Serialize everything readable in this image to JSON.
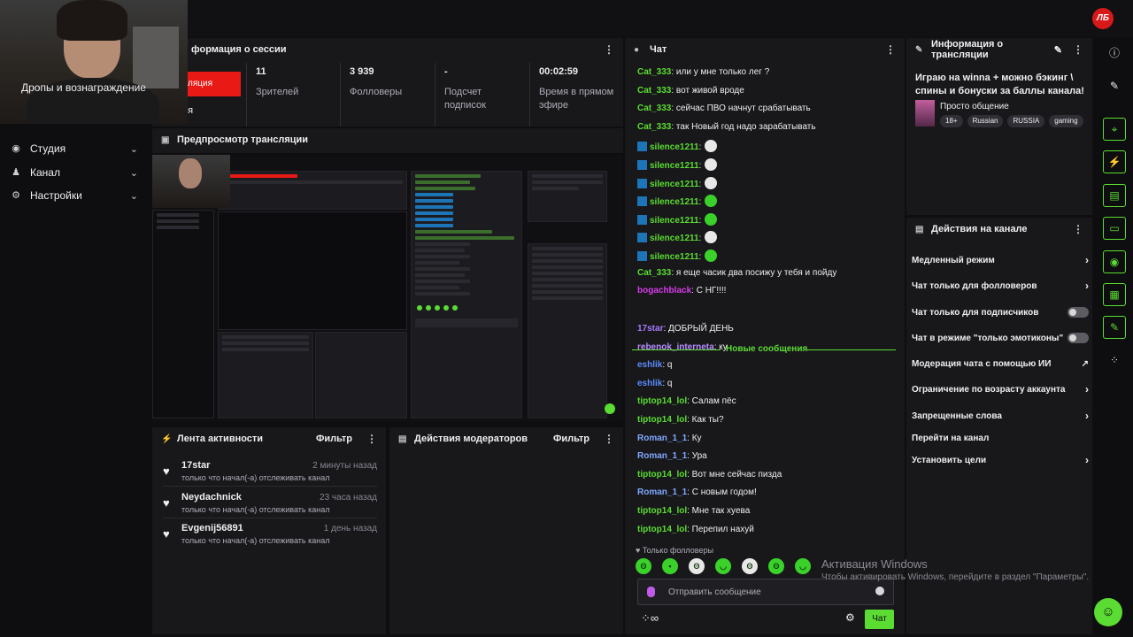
{
  "logo": "ЛБ",
  "sidebar": {
    "drops_label": "Дропы и вознаграждение",
    "items": [
      {
        "label": "Студия",
        "icon": "studio-icon"
      },
      {
        "label": "Канал",
        "icon": "channel-icon"
      },
      {
        "label": "Настройки",
        "icon": "gear-icon"
      }
    ]
  },
  "session": {
    "title": "формация о сессии",
    "live_label": "ляция",
    "live_sub": "ия",
    "stats": [
      {
        "value": "11",
        "label": "Зрителей"
      },
      {
        "value": "3 939",
        "label": "Фолловеры"
      },
      {
        "value": "-",
        "label": "Подсчет подписок"
      },
      {
        "value": "00:02:59",
        "label": "Время в прямом эфире"
      }
    ]
  },
  "preview": {
    "title": "Предпросмотр трансляции"
  },
  "activity": {
    "title": "Лента активности",
    "filter": "Фильтр",
    "items": [
      {
        "name": "17star",
        "time": "2 минуты назад",
        "desc": "только что начал(-а) отслеживать канал"
      },
      {
        "name": "Neydachnick",
        "time": "23 часа назад",
        "desc": "только что начал(-а) отслеживать канал"
      },
      {
        "name": "Evgenij56891",
        "time": "1 день назад",
        "desc": "только что начал(-а) отслеживать канал"
      }
    ]
  },
  "moderators": {
    "title": "Действия модераторов",
    "filter": "Фильтр"
  },
  "chat": {
    "title": "Чат",
    "new_messages": "Новые сообщения",
    "messages_before": [
      {
        "user": "Cat_333",
        "color": "#5bdc32",
        "text": ": или у мне только лег ?",
        "badge": false,
        "emote": ""
      },
      {
        "user": "Cat_333",
        "color": "#5bdc32",
        "text": ": вот живой вроде",
        "badge": false,
        "emote": ""
      },
      {
        "user": "Cat_333",
        "color": "#5bdc32",
        "text": ": сейчас ПВО начнут срабатывать",
        "badge": false,
        "emote": ""
      },
      {
        "user": "Cat_333",
        "color": "#5bdc32",
        "text": ": так Новый год надо зарабатывать",
        "badge": false,
        "emote": ""
      },
      {
        "user": "silence1211",
        "color": "#5bdc32",
        "text": ":",
        "badge": true,
        "emote": "#e8e8e8"
      },
      {
        "user": "silence1211",
        "color": "#5bdc32",
        "text": ":",
        "badge": true,
        "emote": "#e8e8e8"
      },
      {
        "user": "silence1211",
        "color": "#5bdc32",
        "text": ":",
        "badge": true,
        "emote": "#e8e8e8"
      },
      {
        "user": "silence1211",
        "color": "#5bdc32",
        "text": ":",
        "badge": true,
        "emote": "#3ad12a"
      },
      {
        "user": "silence1211",
        "color": "#5bdc32",
        "text": ":",
        "badge": true,
        "emote": "#3ad12a"
      },
      {
        "user": "silence1211",
        "color": "#5bdc32",
        "text": ":",
        "badge": true,
        "emote": "#e8e8e8"
      },
      {
        "user": "silence1211",
        "color": "#5bdc32",
        "text": ":",
        "badge": true,
        "emote": "#3ad12a"
      },
      {
        "user": "Cat_333",
        "color": "#5bdc32",
        "text": ": я еще часик два посижу у тебя и пойду",
        "badge": false,
        "emote": ""
      },
      {
        "user": "bogachblack",
        "color": "#d63be8",
        "text": ": С НГ!!!!",
        "badge": false,
        "emote": ""
      }
    ],
    "messages_after": [
      {
        "user": "17star",
        "color": "#a77bff",
        "text": ": ДОБРЫЙ ДЕНЬ"
      },
      {
        "user": "rebenok_interneta",
        "color": "#b88cff",
        "text": ": ку"
      },
      {
        "user": "eshlik",
        "color": "#5b8cff",
        "text": ": q"
      },
      {
        "user": "eshlik",
        "color": "#5b8cff",
        "text": ": q"
      },
      {
        "user": "tiptop14_lol",
        "color": "#5bdc32",
        "text": ": Салам пёс"
      },
      {
        "user": "tiptop14_lol",
        "color": "#5bdc32",
        "text": ": Как ты?"
      },
      {
        "user": "Roman_1_1",
        "color": "#7fa8ff",
        "text": ": Ку"
      },
      {
        "user": "Roman_1_1",
        "color": "#7fa8ff",
        "text": ": Ура"
      },
      {
        "user": "tiptop14_lol",
        "color": "#5bdc32",
        "text": ": Вот мне сейчас пизда"
      },
      {
        "user": "Roman_1_1",
        "color": "#7fa8ff",
        "text": ": С новым годом!"
      },
      {
        "user": "tiptop14_lol",
        "color": "#5bdc32",
        "text": ": Мне так хуева"
      },
      {
        "user": "tiptop14_lol",
        "color": "#5bdc32",
        "text": ": Перепил нахуй"
      }
    ],
    "followers_only": "Только фолловеры",
    "input_placeholder": "Отправить сообщение",
    "infinity": "∞",
    "send_label": "Чат"
  },
  "stream_info": {
    "header": "Информация о трансляции",
    "title": "Играю на winna + можно бэкинг \\ спины и бонуски за баллы канала!",
    "category": "Просто общение",
    "tags": [
      "18+",
      "Russian",
      "RUSSIA",
      "gaming"
    ]
  },
  "channel_actions": {
    "header": "Действия на канале",
    "items": [
      {
        "label": "Медленный режим",
        "control": "chevron"
      },
      {
        "label": "Чат только для фолловеров",
        "control": "chevron"
      },
      {
        "label": "Чат только для подписчиков",
        "control": "toggle"
      },
      {
        "label": "Чат в режиме \"только эмотиконы\"",
        "control": "toggle"
      },
      {
        "label": "Модерация чата с помощью ИИ",
        "control": "external"
      },
      {
        "label": "Ограничение по возрасту аккаунта",
        "control": "chevron"
      },
      {
        "label": "Запрещенные слова",
        "control": "chevron"
      },
      {
        "label": "Перейти на канал",
        "control": "none"
      },
      {
        "label": "Установить цели",
        "control": "chevron"
      }
    ]
  },
  "windows_watermark": {
    "line1": "Активация Windows",
    "line2": "Чтобы активировать Windows, перейдите в раздел \"Параметры\"."
  },
  "accent_color": "#5bdc32"
}
